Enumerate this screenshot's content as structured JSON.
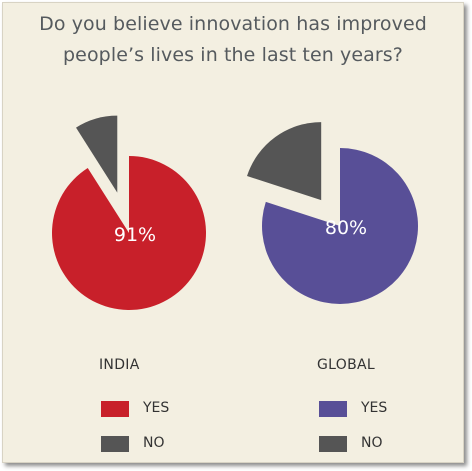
{
  "title": {
    "line1": "Do you believe innovation has improved",
    "line2": "people’s lives in the last ten years?"
  },
  "colors": {
    "background": "#f3efe1",
    "india_yes": "#c8202a",
    "global_yes": "#584f97",
    "no": "#555555"
  },
  "chart_data": [
    {
      "type": "pie",
      "title": "INDIA",
      "categories": [
        "YES",
        "NO"
      ],
      "values": [
        91,
        9
      ],
      "slice_labels": [
        "91%",
        ""
      ],
      "colors": [
        "#c8202a",
        "#555555"
      ],
      "exploded": "NO"
    },
    {
      "type": "pie",
      "title": "GLOBAL",
      "categories": [
        "YES",
        "NO"
      ],
      "values": [
        80,
        20
      ],
      "slice_labels": [
        "80%",
        ""
      ],
      "colors": [
        "#584f97",
        "#555555"
      ],
      "exploded": "NO"
    }
  ],
  "legends": {
    "india": {
      "header": "INDIA",
      "yes": "YES",
      "no": "NO"
    },
    "global": {
      "header": "GLOBAL",
      "yes": "YES",
      "no": "NO"
    }
  }
}
